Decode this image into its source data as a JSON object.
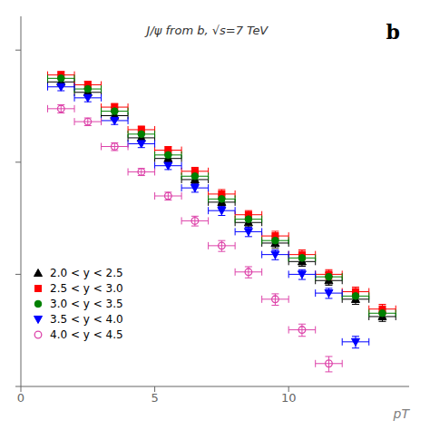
{
  "chart_data": {
    "type": "scatter",
    "title": "J/ψ from b, √s=7 TeV",
    "x_label": "pT",
    "annotations": [
      "b"
    ],
    "log": "y",
    "xlim": [
      0,
      14.5
    ],
    "xticks": [
      0,
      5,
      10
    ],
    "ylim": [
      1,
      2000
    ],
    "yticks": [
      1,
      10,
      100,
      1000
    ],
    "tick_labels": "x",
    "grid": false,
    "legend": "lower left",
    "series": [
      {
        "name": "2.0 < y < 2.5",
        "color": "black",
        "marker": "triangle_up",
        "x": [
          1.5,
          2.5,
          3.5,
          4.5,
          5.5,
          6.5,
          7.5,
          8.5,
          9.5,
          10.5,
          11.5,
          12.5,
          13.5
        ],
        "values": [
          520,
          420,
          260,
          165,
          108,
          70,
          44,
          29,
          19,
          13,
          8.8,
          6.0,
          4.2
        ],
        "xerr": [
          0.5,
          0.5,
          0.5,
          0.5,
          0.5,
          0.5,
          0.5,
          0.5,
          0.5,
          0.5,
          0.5,
          0.5,
          0.5
        ],
        "yerr": [
          40,
          33,
          20,
          13,
          9,
          6,
          4,
          2.5,
          1.8,
          1.2,
          0.8,
          0.6,
          0.4
        ]
      },
      {
        "name": "2.5 < y < 3.0",
        "color": "red",
        "marker": "square",
        "x": [
          1.5,
          2.5,
          3.5,
          4.5,
          5.5,
          6.5,
          7.5,
          8.5,
          9.5,
          10.5,
          11.5,
          12.5,
          13.5
        ],
        "values": [
          600,
          490,
          310,
          195,
          128,
          83,
          52,
          34,
          22,
          15,
          10,
          7.0,
          4.9
        ],
        "xerr": [
          0.5,
          0.5,
          0.5,
          0.5,
          0.5,
          0.5,
          0.5,
          0.5,
          0.5,
          0.5,
          0.5,
          0.5,
          0.5
        ],
        "yerr": [
          45,
          38,
          24,
          15,
          10,
          7,
          5,
          3,
          2.2,
          1.5,
          1.0,
          0.7,
          0.5
        ]
      },
      {
        "name": "3.0 < y < 3.5",
        "color": "green",
        "marker": "circle",
        "x": [
          1.5,
          2.5,
          3.5,
          4.5,
          5.5,
          6.5,
          7.5,
          8.5,
          9.5,
          10.5,
          11.5,
          12.5,
          13.5
        ],
        "values": [
          560,
          450,
          285,
          178,
          116,
          75,
          47,
          31,
          20,
          14,
          9.5,
          6.4,
          4.5
        ],
        "xerr": [
          0.5,
          0.5,
          0.5,
          0.5,
          0.5,
          0.5,
          0.5,
          0.5,
          0.5,
          0.5,
          0.5,
          0.5,
          0.5
        ],
        "yerr": [
          42,
          35,
          22,
          14,
          9,
          6,
          4,
          2.8,
          1.9,
          1.3,
          0.9,
          0.6,
          0.4
        ]
      },
      {
        "name": "3.5 < y < 4.0",
        "color": "blue",
        "marker": "triangle_down",
        "x": [
          1.5,
          2.5,
          3.5,
          4.5,
          5.5,
          6.5,
          7.5,
          8.5,
          9.5,
          10.5,
          11.5,
          12.5
        ],
        "values": [
          470,
          375,
          235,
          146,
          93,
          59,
          37,
          24,
          15,
          10,
          6.8,
          2.5
        ],
        "xerr": [
          0.5,
          0.5,
          0.5,
          0.5,
          0.5,
          0.5,
          0.5,
          0.5,
          0.5,
          0.5,
          0.5,
          0.5
        ],
        "yerr": [
          36,
          29,
          18,
          11,
          7,
          5,
          3.5,
          2.3,
          1.5,
          1.0,
          0.7,
          0.3
        ]
      },
      {
        "name": "4.0 < y < 4.5",
        "color": "#dd44aa",
        "marker": "open_circle",
        "x": [
          1.5,
          2.5,
          3.5,
          4.5,
          5.5,
          6.5,
          7.5,
          8.5,
          9.5,
          10.5,
          11.5
        ],
        "values": [
          300,
          230,
          138,
          82,
          50,
          30,
          18,
          10.5,
          6.0,
          3.2,
          1.6
        ],
        "xerr": [
          0.5,
          0.5,
          0.5,
          0.5,
          0.5,
          0.5,
          0.5,
          0.5,
          0.5,
          0.5,
          0.5
        ],
        "yerr": [
          25,
          18,
          11,
          6,
          4,
          3,
          2,
          1.2,
          0.7,
          0.4,
          0.25
        ]
      }
    ]
  }
}
